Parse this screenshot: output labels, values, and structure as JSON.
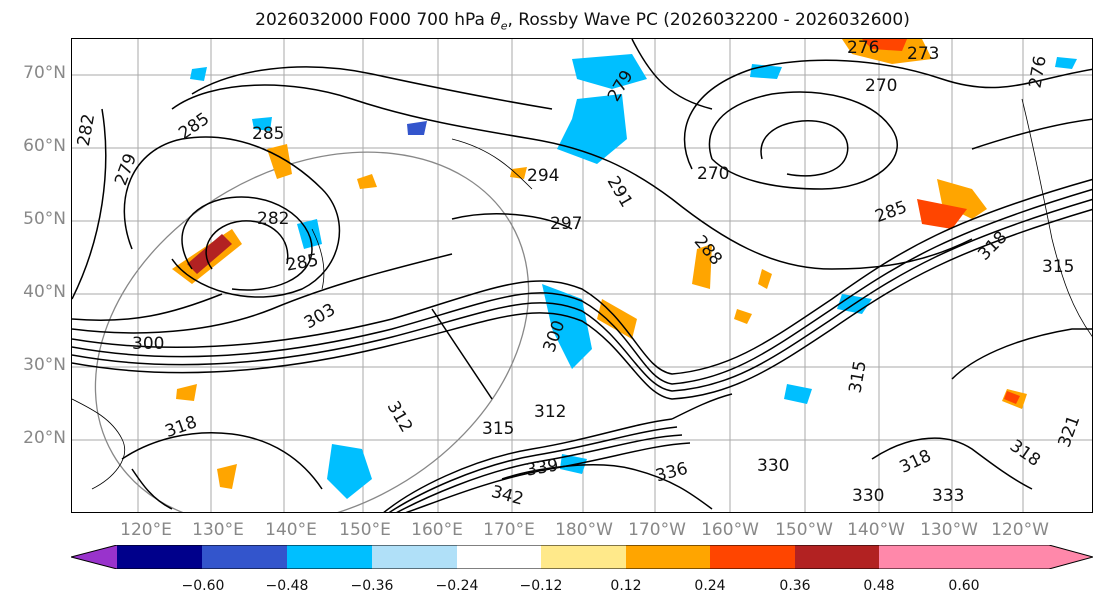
{
  "title": "2026032000 F000 700 hPa",
  "title_theta": "θ",
  "title_sub": "e",
  "title_rest": ", Rossby Wave PC (2026032200 - 2026032600)",
  "lat_labels": [
    "70°N",
    "60°N",
    "50°N",
    "40°N",
    "30°N",
    "20°N"
  ],
  "lon_labels": [
    "120°E",
    "130°E",
    "140°E",
    "150°E",
    "160°E",
    "170°E",
    "180°W",
    "170°W",
    "160°W",
    "150°W",
    "140°W",
    "130°W",
    "120°W"
  ],
  "contour_labels": [
    "276",
    "273",
    "270",
    "282",
    "285",
    "279",
    "294",
    "270",
    "285",
    "282",
    "297",
    "288",
    "291",
    "285",
    "318",
    "315",
    "315",
    "303",
    "300",
    "300",
    "312",
    "312",
    "318",
    "315",
    "342",
    "339",
    "330",
    "336",
    "330",
    "318",
    "333",
    "318",
    "321",
    "279",
    "276",
    "285"
  ],
  "colorbar": {
    "ticks": [
      "−0.60",
      "−0.48",
      "−0.36",
      "−0.24",
      "−0.12",
      "0.12",
      "0.24",
      "0.36",
      "0.48",
      "0.60"
    ],
    "colors": [
      "#9933cc",
      "#00008b",
      "#3355cc",
      "#00bfff",
      "#b0e0f8",
      "#ffffff",
      "#ffe98a",
      "#ffa500",
      "#ff4500",
      "#b22222",
      "#ff88aa",
      "#ff88ee"
    ]
  }
}
